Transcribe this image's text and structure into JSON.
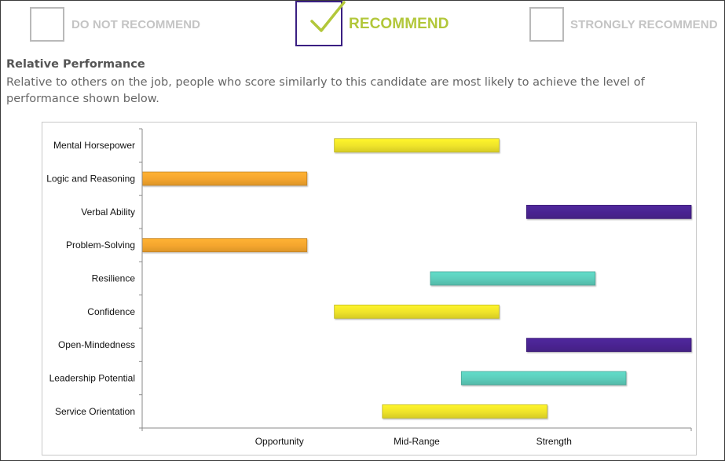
{
  "recommendation": {
    "options": [
      {
        "label": "DO NOT RECOMMEND",
        "selected": false
      },
      {
        "label": "RECOMMEND",
        "selected": true
      },
      {
        "label": "STRONGLY RECOMMEND",
        "selected": false
      }
    ],
    "colors": {
      "selected_border": "#3a1f82",
      "check": "#b2c73a",
      "unselected": "#b9b9b9"
    }
  },
  "section": {
    "title": "Relative Performance",
    "description": "Relative to others on the job, people who score similarly to this candidate are most likely to achieve the level of performance shown below."
  },
  "chart_data": {
    "type": "bar",
    "orientation": "horizontal-range",
    "categories": [
      "Mental Horsepower",
      "Logic and Reasoning",
      "Verbal Ability",
      "Problem-Solving",
      "Resilience",
      "Confidence",
      "Open-Mindedness",
      "Leadership Potential",
      "Service Orientation"
    ],
    "x_ticks": [
      "Opportunity",
      "Mid-Range",
      "Strength"
    ],
    "xlim": [
      0,
      8
    ],
    "ranges": [
      {
        "start": 2.8,
        "end": 5.2,
        "color": "#eee32a"
      },
      {
        "start": 0.0,
        "end": 2.4,
        "color": "#f4a52e"
      },
      {
        "start": 5.6,
        "end": 8.0,
        "color": "#4a2491"
      },
      {
        "start": 0.0,
        "end": 2.4,
        "color": "#f4a52e"
      },
      {
        "start": 4.2,
        "end": 6.6,
        "color": "#5ccdbb"
      },
      {
        "start": 2.8,
        "end": 5.2,
        "color": "#eee32a"
      },
      {
        "start": 5.6,
        "end": 8.0,
        "color": "#4a2491"
      },
      {
        "start": 4.65,
        "end": 7.05,
        "color": "#5ccdbb"
      },
      {
        "start": 3.5,
        "end": 5.9,
        "color": "#eee32a"
      }
    ],
    "grid": false,
    "legend": "none"
  }
}
